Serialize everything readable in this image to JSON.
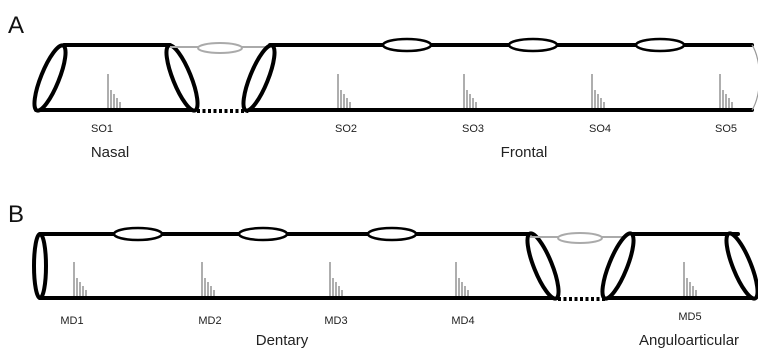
{
  "panel_a": {
    "letter": "A",
    "organs": [
      "SO1",
      "SO2",
      "SO3",
      "SO4",
      "SO5"
    ],
    "bones": [
      "Nasal",
      "Frontal"
    ]
  },
  "panel_b": {
    "letter": "B",
    "organs": [
      "MD1",
      "MD2",
      "MD3",
      "MD4",
      "MD5"
    ],
    "bones": [
      "Dentary",
      "Anguloarticular"
    ]
  },
  "colors": {
    "canal_wall": "#000000",
    "membrane": "#aaaaaa",
    "neuromast": "#999999"
  }
}
